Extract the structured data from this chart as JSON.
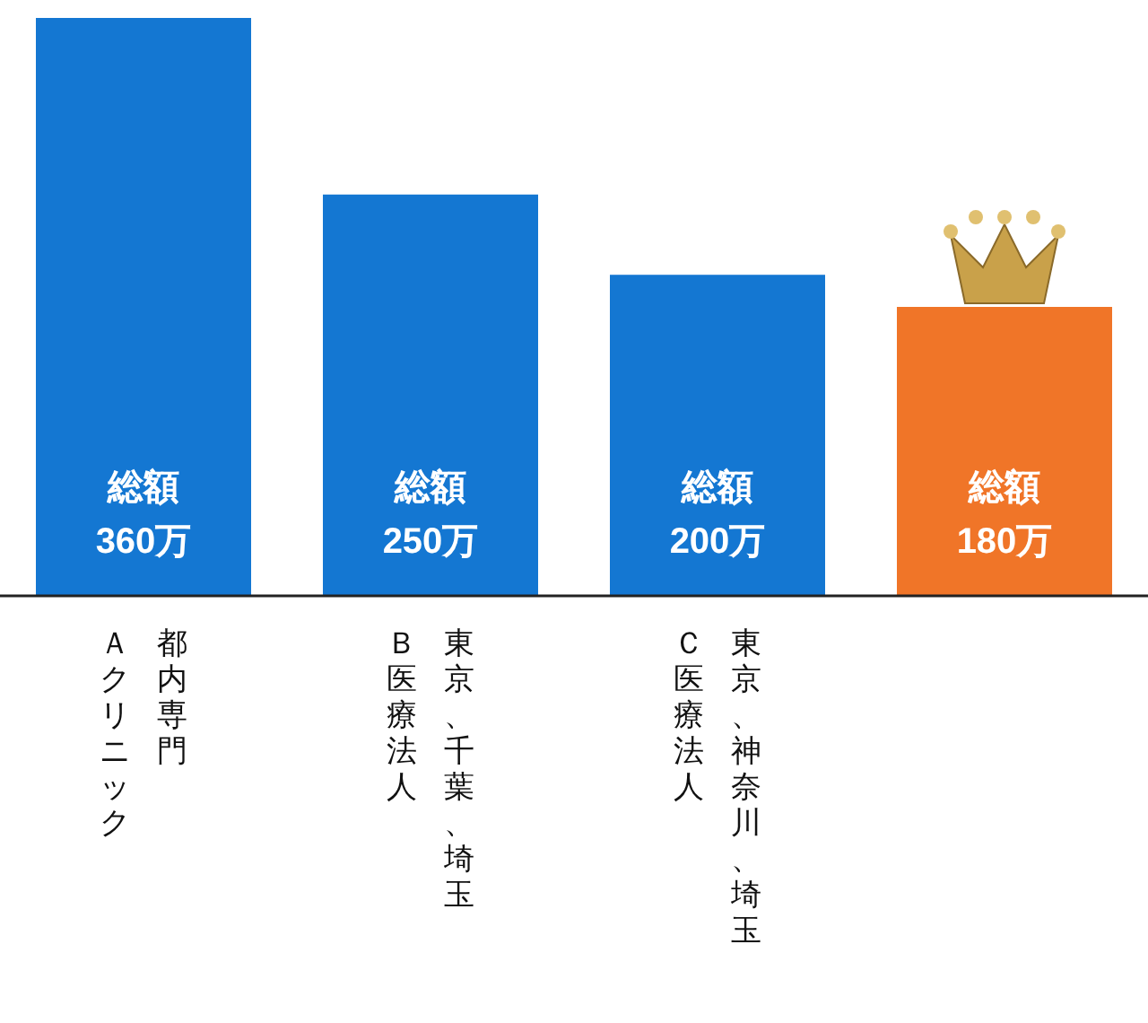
{
  "chart_data": {
    "type": "bar",
    "categories": [
      "Ａクリニック",
      "Ｂ医療法人",
      "Ｃ医療法人",
      null
    ],
    "annotations": [
      "都内専門",
      "東京、千葉、埼玉",
      "東京、神奈川、埼玉"
    ],
    "values": [
      360,
      250,
      200,
      180
    ],
    "colors": [
      "#1477d2",
      "#1477d2",
      "#1477d2",
      "#f07528"
    ],
    "value_labels": [
      "総額\n360万",
      "総額\n250万",
      "総額\n200万",
      "総額\n180万"
    ],
    "tick_labels": "x"
  }
}
